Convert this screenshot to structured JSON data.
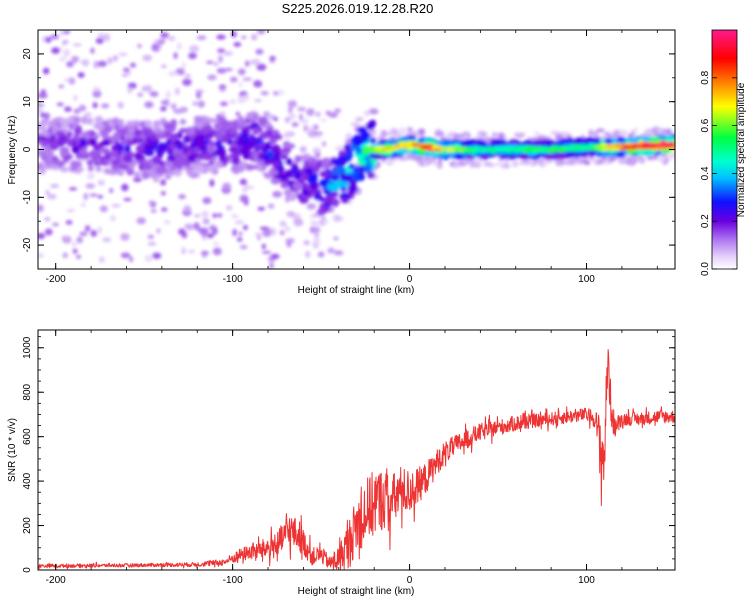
{
  "title": "S225.2026.019.12.28.R20",
  "chart_data": [
    {
      "type": "heatmap",
      "name": "spectrogram",
      "xlabel": "Height of straight line (km)",
      "ylabel": "Frequency (Hz)",
      "xlim": [
        -210,
        150
      ],
      "ylim": [
        -25,
        25
      ],
      "xticks": [
        -200,
        -100,
        0,
        100
      ],
      "yticks": [
        -20,
        -10,
        0,
        10,
        20
      ],
      "colorbar": {
        "label": "Normalized spectral amplitude",
        "range": [
          0,
          1
        ],
        "ticks": [
          0.0,
          0.2,
          0.4,
          0.6,
          0.8
        ],
        "tick_labels": [
          "0.0",
          "0.2",
          "0.4",
          "0.6",
          "0.8"
        ],
        "colors": [
          "#ffffff",
          "#c79bf5",
          "#7a00e0",
          "#1010ff",
          "#00ffff",
          "#00ff40",
          "#ffff00",
          "#ff6000",
          "#ff0000",
          "#ff3399"
        ]
      },
      "ridge": {
        "x": [
          -210,
          -180,
          -150,
          -120,
          -100,
          -85,
          -75,
          -65,
          -55,
          -48,
          -42,
          -35,
          -28,
          -22,
          -15,
          -8,
          0,
          10,
          20,
          40,
          60,
          80,
          100,
          110,
          120,
          135,
          150
        ],
        "y": [
          1,
          1,
          0,
          1,
          1,
          2,
          -2,
          -5,
          -7,
          -8,
          -7,
          -5,
          -1,
          0,
          0,
          0.5,
          1,
          0.5,
          0,
          0,
          0,
          0,
          0.5,
          0.5,
          0.5,
          0.8,
          1
        ],
        "amplitude": [
          0.2,
          0.22,
          0.25,
          0.25,
          0.25,
          0.3,
          0.3,
          0.28,
          0.3,
          0.35,
          0.4,
          0.45,
          0.5,
          0.6,
          0.65,
          0.7,
          0.75,
          0.85,
          0.7,
          0.5,
          0.5,
          0.55,
          0.5,
          0.7,
          0.8,
          0.9,
          0.95
        ]
      }
    },
    {
      "type": "line",
      "name": "snr",
      "xlabel": "Height of straight line (km)",
      "ylabel": "SNR (10 * v/v)",
      "xlim": [
        -210,
        150
      ],
      "ylim": [
        0,
        1080
      ],
      "xticks": [
        -200,
        -100,
        0,
        100
      ],
      "yticks": [
        0,
        200,
        400,
        600,
        800,
        1000
      ],
      "color": "#ee3333",
      "series": [
        {
          "name": "SNR",
          "x": [
            -210,
            -180,
            -150,
            -120,
            -105,
            -95,
            -85,
            -75,
            -68,
            -62,
            -55,
            -50,
            -45,
            -40,
            -35,
            -30,
            -25,
            -20,
            -15,
            -10,
            -5,
            0,
            5,
            10,
            15,
            20,
            30,
            40,
            50,
            60,
            70,
            80,
            90,
            100,
            105,
            108,
            110,
            112,
            114,
            116,
            120,
            130,
            140,
            150
          ],
          "y": [
            18,
            20,
            22,
            25,
            35,
            70,
            90,
            110,
            180,
            150,
            60,
            70,
            30,
            50,
            110,
            200,
            260,
            300,
            320,
            300,
            360,
            350,
            380,
            420,
            480,
            530,
            580,
            620,
            640,
            660,
            670,
            680,
            690,
            700,
            680,
            550,
            500,
            960,
            720,
            640,
            680,
            680,
            690,
            690
          ],
          "noise": [
            8,
            8,
            8,
            10,
            15,
            30,
            40,
            60,
            80,
            70,
            40,
            40,
            30,
            60,
            100,
            130,
            150,
            150,
            140,
            130,
            110,
            100,
            80,
            70,
            60,
            50,
            45,
            40,
            35,
            35,
            30,
            30,
            30,
            30,
            40,
            150,
            150,
            120,
            80,
            50,
            30,
            30,
            30,
            30
          ]
        }
      ]
    }
  ]
}
